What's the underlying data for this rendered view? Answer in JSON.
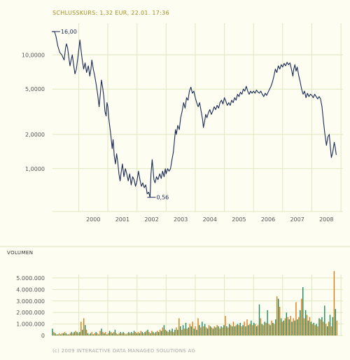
{
  "header": {
    "quote_line": "SCHLUSSKURS: 1,32 EUR, 22.01. 17:36"
  },
  "volume_section": {
    "title": "VOLUMEN"
  },
  "footer": {
    "copyright": "(c) 2009 INTERACTIVE DATA MANAGED SOLUTIONS AG"
  },
  "colors": {
    "background": "#fdfdf2",
    "price_line": "#1a2a55",
    "grid": "#dfe8c0",
    "quote_text": "#a09020",
    "axis_text": "#555555",
    "volume_green": "#1a8a60",
    "volume_orange": "#e07a10"
  },
  "chart_data": [
    {
      "type": "line",
      "scale": "log",
      "y_ticks": [
        {
          "value": 10000,
          "label": "10,0000"
        },
        {
          "value": 5000,
          "label": "5,0000"
        },
        {
          "value": 2000,
          "label": "2,0000"
        },
        {
          "value": 1000,
          "label": "1,0000"
        }
      ],
      "x_ticks": [
        "2000",
        "2001",
        "2002",
        "2003",
        "2004",
        "2005",
        "2006",
        "2007",
        "2008"
      ],
      "ylim": [
        0.42,
        19
      ],
      "xlim": [
        1999.1,
        2009.07
      ],
      "annotations": [
        {
          "label": "16,00",
          "x": 1999.17,
          "y": 16.0
        },
        {
          "label": "0,56",
          "x": 2002.45,
          "y": 0.56
        }
      ],
      "series": [
        {
          "points": [
            [
              1999.1,
              16.0
            ],
            [
              1999.17,
              16.0
            ],
            [
              1999.22,
              14.5
            ],
            [
              1999.28,
              12.0
            ],
            [
              1999.35,
              10.5
            ],
            [
              1999.42,
              10.0
            ],
            [
              1999.5,
              9.0
            ],
            [
              1999.55,
              11.5
            ],
            [
              1999.58,
              12.5
            ],
            [
              1999.62,
              11.5
            ],
            [
              1999.66,
              9.5
            ],
            [
              1999.7,
              8.0
            ],
            [
              1999.74,
              9.0
            ],
            [
              1999.78,
              10.0
            ],
            [
              1999.83,
              8.0
            ],
            [
              1999.87,
              6.8
            ],
            [
              1999.92,
              7.5
            ],
            [
              1999.96,
              9.0
            ],
            [
              2000.0,
              11.0
            ],
            [
              2000.04,
              13.5
            ],
            [
              2000.08,
              11.0
            ],
            [
              2000.12,
              9.0
            ],
            [
              2000.17,
              7.5
            ],
            [
              2000.22,
              8.5
            ],
            [
              2000.27,
              7.0
            ],
            [
              2000.33,
              8.0
            ],
            [
              2000.38,
              6.5
            ],
            [
              2000.42,
              7.5
            ],
            [
              2000.45,
              9.0
            ],
            [
              2000.5,
              7.5
            ],
            [
              2000.55,
              6.5
            ],
            [
              2000.6,
              5.5
            ],
            [
              2000.65,
              4.5
            ],
            [
              2000.7,
              3.5
            ],
            [
              2000.74,
              4.5
            ],
            [
              2000.78,
              6.0
            ],
            [
              2000.82,
              5.2
            ],
            [
              2000.86,
              4.3
            ],
            [
              2000.9,
              3.2
            ],
            [
              2000.94,
              2.9
            ],
            [
              2000.97,
              3.8
            ],
            [
              2001.0,
              3.5
            ],
            [
              2001.03,
              2.8
            ],
            [
              2001.07,
              2.3
            ],
            [
              2001.1,
              2.0
            ],
            [
              2001.15,
              1.5
            ],
            [
              2001.18,
              1.8
            ],
            [
              2001.22,
              1.3
            ],
            [
              2001.26,
              1.1
            ],
            [
              2001.3,
              1.35
            ],
            [
              2001.34,
              1.15
            ],
            [
              2001.38,
              0.9
            ],
            [
              2001.42,
              0.78
            ],
            [
              2001.45,
              0.9
            ],
            [
              2001.5,
              1.1
            ],
            [
              2001.55,
              0.85
            ],
            [
              2001.6,
              1.0
            ],
            [
              2001.65,
              0.9
            ],
            [
              2001.7,
              0.78
            ],
            [
              2001.75,
              0.9
            ],
            [
              2001.8,
              0.72
            ],
            [
              2001.85,
              0.85
            ],
            [
              2001.9,
              0.8
            ],
            [
              2001.95,
              0.7
            ],
            [
              2002.0,
              0.78
            ],
            [
              2002.05,
              0.95
            ],
            [
              2002.1,
              0.8
            ],
            [
              2002.15,
              0.7
            ],
            [
              2002.2,
              0.75
            ],
            [
              2002.25,
              0.68
            ],
            [
              2002.3,
              0.72
            ],
            [
              2002.35,
              0.6
            ],
            [
              2002.4,
              0.62
            ],
            [
              2002.45,
              0.56
            ],
            [
              2002.48,
              0.9
            ],
            [
              2002.52,
              1.2
            ],
            [
              2002.55,
              1.0
            ],
            [
              2002.58,
              0.8
            ],
            [
              2002.62,
              0.75
            ],
            [
              2002.67,
              0.85
            ],
            [
              2002.72,
              0.8
            ],
            [
              2002.78,
              0.9
            ],
            [
              2002.83,
              0.82
            ],
            [
              2002.88,
              0.95
            ],
            [
              2002.93,
              0.85
            ],
            [
              2002.97,
              1.0
            ],
            [
              2003.0,
              0.9
            ],
            [
              2003.05,
              1.0
            ],
            [
              2003.1,
              0.95
            ],
            [
              2003.15,
              1.0
            ],
            [
              2003.2,
              1.2
            ],
            [
              2003.25,
              1.4
            ],
            [
              2003.28,
              1.7
            ],
            [
              2003.32,
              2.2
            ],
            [
              2003.35,
              2.0
            ],
            [
              2003.4,
              2.4
            ],
            [
              2003.45,
              2.2
            ],
            [
              2003.5,
              2.8
            ],
            [
              2003.55,
              3.2
            ],
            [
              2003.6,
              3.8
            ],
            [
              2003.65,
              3.4
            ],
            [
              2003.7,
              4.2
            ],
            [
              2003.75,
              4.0
            ],
            [
              2003.8,
              4.8
            ],
            [
              2003.85,
              5.2
            ],
            [
              2003.9,
              4.6
            ],
            [
              2003.95,
              4.8
            ],
            [
              2004.0,
              4.2
            ],
            [
              2004.05,
              3.8
            ],
            [
              2004.1,
              3.5
            ],
            [
              2004.15,
              3.8
            ],
            [
              2004.2,
              3.2
            ],
            [
              2004.25,
              2.7
            ],
            [
              2004.28,
              2.3
            ],
            [
              2004.32,
              2.6
            ],
            [
              2004.36,
              3.0
            ],
            [
              2004.4,
              2.8
            ],
            [
              2004.45,
              3.1
            ],
            [
              2004.5,
              3.3
            ],
            [
              2004.55,
              3.0
            ],
            [
              2004.6,
              3.2
            ],
            [
              2004.65,
              3.5
            ],
            [
              2004.7,
              3.3
            ],
            [
              2004.75,
              3.6
            ],
            [
              2004.8,
              3.4
            ],
            [
              2004.85,
              3.8
            ],
            [
              2004.9,
              4.0
            ],
            [
              2004.95,
              3.7
            ],
            [
              2005.0,
              4.2
            ],
            [
              2005.05,
              3.9
            ],
            [
              2005.1,
              3.6
            ],
            [
              2005.15,
              3.8
            ],
            [
              2005.2,
              3.6
            ],
            [
              2005.25,
              4.0
            ],
            [
              2005.3,
              3.8
            ],
            [
              2005.35,
              4.2
            ],
            [
              2005.4,
              4.0
            ],
            [
              2005.45,
              4.5
            ],
            [
              2005.5,
              4.3
            ],
            [
              2005.55,
              4.7
            ],
            [
              2005.6,
              4.5
            ],
            [
              2005.65,
              5.0
            ],
            [
              2005.7,
              4.8
            ],
            [
              2005.75,
              5.3
            ],
            [
              2005.8,
              4.8
            ],
            [
              2005.85,
              4.5
            ],
            [
              2005.9,
              4.8
            ],
            [
              2005.95,
              4.6
            ],
            [
              2006.0,
              4.8
            ],
            [
              2006.05,
              4.6
            ],
            [
              2006.1,
              4.9
            ],
            [
              2006.15,
              4.7
            ],
            [
              2006.2,
              4.6
            ],
            [
              2006.25,
              4.8
            ],
            [
              2006.3,
              4.5
            ],
            [
              2006.35,
              4.3
            ],
            [
              2006.4,
              4.6
            ],
            [
              2006.45,
              4.4
            ],
            [
              2006.5,
              4.7
            ],
            [
              2006.55,
              5.0
            ],
            [
              2006.6,
              5.3
            ],
            [
              2006.65,
              5.8
            ],
            [
              2006.7,
              6.5
            ],
            [
              2006.75,
              7.5
            ],
            [
              2006.8,
              7.0
            ],
            [
              2006.85,
              8.0
            ],
            [
              2006.9,
              7.5
            ],
            [
              2006.95,
              8.2
            ],
            [
              2007.0,
              7.8
            ],
            [
              2007.05,
              8.4
            ],
            [
              2007.1,
              8.0
            ],
            [
              2007.15,
              8.6
            ],
            [
              2007.2,
              8.2
            ],
            [
              2007.25,
              8.5
            ],
            [
              2007.3,
              7.5
            ],
            [
              2007.35,
              6.5
            ],
            [
              2007.38,
              7.5
            ],
            [
              2007.42,
              8.2
            ],
            [
              2007.46,
              7.2
            ],
            [
              2007.5,
              7.8
            ],
            [
              2007.55,
              6.6
            ],
            [
              2007.6,
              5.8
            ],
            [
              2007.65,
              5.0
            ],
            [
              2007.7,
              4.5
            ],
            [
              2007.75,
              4.8
            ],
            [
              2007.8,
              4.2
            ],
            [
              2007.85,
              4.6
            ],
            [
              2007.9,
              4.3
            ],
            [
              2007.95,
              4.5
            ],
            [
              2008.0,
              4.4
            ],
            [
              2008.05,
              4.2
            ],
            [
              2008.1,
              4.5
            ],
            [
              2008.15,
              4.3
            ],
            [
              2008.2,
              4.1
            ],
            [
              2008.25,
              4.3
            ],
            [
              2008.3,
              4.1
            ],
            [
              2008.35,
              3.5
            ],
            [
              2008.4,
              2.6
            ],
            [
              2008.45,
              2.0
            ],
            [
              2008.5,
              1.6
            ],
            [
              2008.55,
              1.9
            ],
            [
              2008.6,
              2.0
            ],
            [
              2008.63,
              1.6
            ],
            [
              2008.67,
              1.25
            ],
            [
              2008.72,
              1.4
            ],
            [
              2008.77,
              1.7
            ],
            [
              2008.8,
              1.55
            ],
            [
              2008.84,
              1.32
            ]
          ]
        }
      ]
    },
    {
      "type": "bar",
      "y_ticks": [
        {
          "value": 5000000,
          "label": "5.000.000"
        },
        {
          "value": 4000000,
          "label": "4.000.000"
        },
        {
          "value": 3000000,
          "label": "3.000.000"
        },
        {
          "value": 2000000,
          "label": "2.000.000"
        },
        {
          "value": 1000000,
          "label": "1.000.000"
        },
        {
          "value": 0,
          "label": "0"
        }
      ],
      "ylim": [
        0,
        5300000
      ],
      "xlim": [
        1999.1,
        2009.07
      ],
      "x_range": [
        1999.1,
        2008.86
      ],
      "values_millions": [
        0.6,
        0.3,
        0.2,
        0.1,
        0.1,
        0.2,
        0.1,
        0.2,
        0.2,
        0.3,
        0.2,
        0.1,
        0.1,
        0.2,
        0.3,
        0.2,
        0.3,
        0.4,
        0.3,
        0.2,
        0.3,
        1.2,
        0.5,
        1.5,
        0.9,
        0.5,
        0.2,
        0.1,
        0.2,
        0.3,
        0.1,
        0.2,
        0.3,
        0.2,
        0.1,
        0.4,
        0.6,
        0.3,
        0.2,
        0.3,
        0.1,
        0.2,
        0.4,
        0.3,
        0.2,
        0.3,
        0.5,
        0.2,
        0.1,
        0.2,
        0.3,
        0.2,
        0.3,
        0.2,
        0.1,
        0.2,
        0.3,
        0.2,
        0.3,
        0.2,
        0.4,
        0.3,
        0.2,
        0.3,
        0.2,
        0.4,
        0.3,
        0.2,
        0.3,
        0.4,
        0.5,
        0.3,
        0.2,
        0.4,
        0.3,
        0.2,
        0.3,
        0.4,
        0.3,
        0.5,
        0.4,
        0.7,
        0.9,
        0.5,
        0.4,
        0.3,
        0.5,
        0.4,
        0.6,
        0.3,
        0.5,
        0.7,
        0.5,
        1.5,
        0.8,
        0.5,
        0.9,
        0.6,
        1.1,
        0.6,
        0.7,
        1.0,
        0.8,
        1.2,
        0.6,
        0.8,
        0.5,
        1.5,
        0.9,
        0.7,
        1.2,
        0.8,
        1.0,
        0.7,
        0.6,
        0.9,
        0.8,
        0.7,
        0.6,
        0.8,
        0.7,
        0.9,
        0.8,
        0.6,
        0.8,
        0.7,
        0.9,
        1.7,
        0.8,
        0.7,
        1.0,
        0.9,
        0.8,
        1.2,
        0.8,
        0.9,
        1.0,
        0.9,
        1.1,
        0.8,
        0.9,
        1.2,
        0.8,
        1.4,
        0.9,
        1.0,
        1.3,
        0.9,
        1.1,
        1.0,
        0.8,
        0.9,
        2.7,
        1.5,
        1.0,
        0.9,
        1.2,
        1.1,
        2.2,
        1.0,
        0.9,
        1.3,
        1.1,
        1.0,
        1.4,
        3.4,
        3.2,
        2.5,
        1.5,
        1.2,
        1.3,
        1.5,
        2.0,
        1.6,
        1.4,
        1.7,
        1.2,
        1.5,
        1.3,
        2.9,
        1.4,
        1.6,
        2.2,
        3.2,
        4.2,
        1.5,
        2.2,
        1.8,
        1.3,
        1.6,
        1.2,
        1.0,
        1.1,
        0.9,
        1.0,
        0.8,
        1.5,
        1.4,
        1.6,
        1.2,
        2.6,
        1.0,
        0.8,
        1.2,
        1.8,
        0.8,
        1.6,
        5.6,
        2.3,
        1.3
      ]
    }
  ]
}
